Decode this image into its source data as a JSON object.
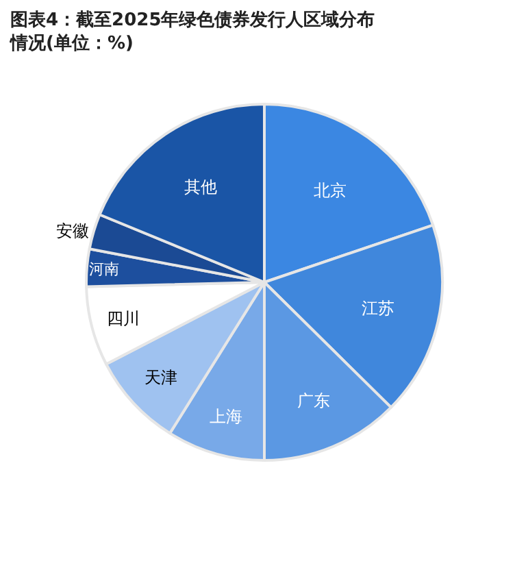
{
  "chart_data": {
    "type": "pie",
    "title": "图表4：截至2025年绿色债券发行人区域分布情况(单位：%)",
    "categories": [
      "北京",
      "江苏",
      "广东",
      "上海",
      "天津",
      "四川",
      "河南",
      "安徽",
      "其他"
    ],
    "values": [
      19.8,
      17.6,
      12.6,
      8.9,
      8.5,
      7.2,
      3.4,
      3.2,
      18.8
    ],
    "colors": [
      "#3b87e2",
      "#4087dc",
      "#5b98e3",
      "#78a9e8",
      "#9fc2f0",
      "#ffffff",
      "#1d4f9e",
      "#1b4a94",
      "#1a55a6"
    ],
    "legend": false
  }
}
